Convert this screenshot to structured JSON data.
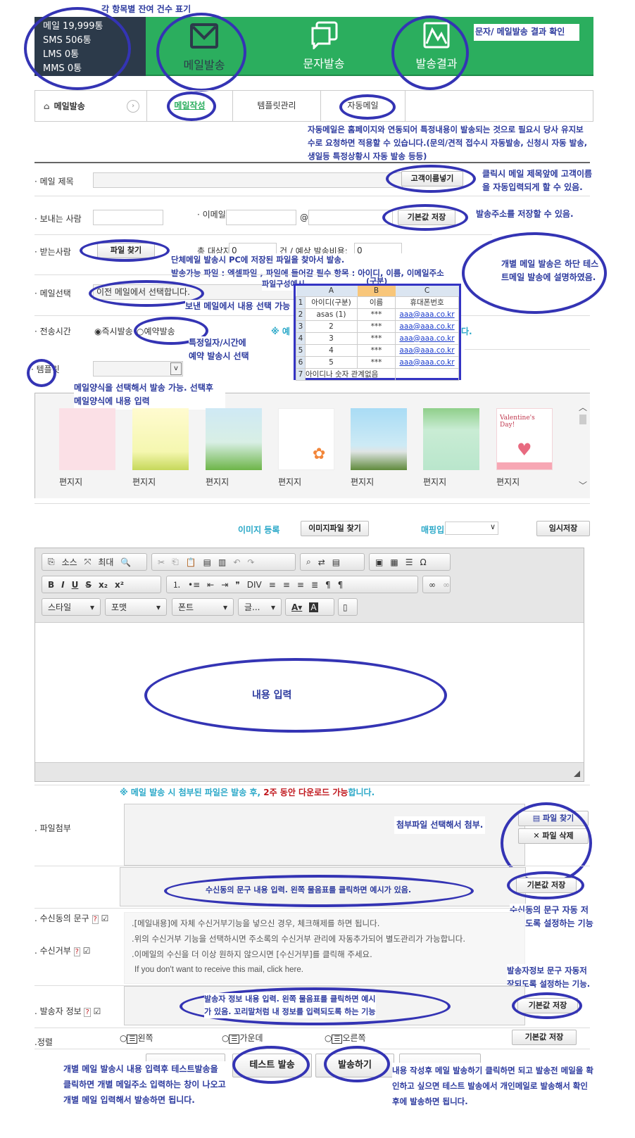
{
  "header": {
    "balances": [
      "메일 19,999통",
      "SMS 506통",
      "LMS 0통",
      "MMS 0통"
    ],
    "nav": [
      {
        "label": "메일발송",
        "icon": "envelope-icon"
      },
      {
        "label": "문자발송",
        "icon": "chat-bubbles-icon"
      },
      {
        "label": "발송결과",
        "icon": "mountain-chart-icon"
      }
    ],
    "colors": {
      "green": "#2bae5e",
      "dark": "#2c3a4a",
      "annotation": "#2c3a9e",
      "ellipse": "#3434b4"
    }
  },
  "subnav": {
    "home": "메일발송",
    "tabs": [
      "메일작성",
      "템플릿관리",
      "자동메일"
    ],
    "active": 0
  },
  "form": {
    "subject_label": "· 메일 제목",
    "customer_name_btn": "고객이름넣기",
    "sender_label": "· 보내는 사람",
    "email_label": "· 이메일",
    "at": "@",
    "save_default_btn": "기본값 저장",
    "recipient_label": "· 받는사람",
    "file_find_btn": "파일 찾기",
    "total_label": "총 대상자:",
    "total_value": "0",
    "cost_label": "건 / 예상 발송비용:",
    "cost_value": "0",
    "mail_select_label": "· 메일선택",
    "mail_select_value": "이전 메일에서 선택합니다.",
    "send_time_label": "· 전송시간",
    "radio_now": "즉시발송",
    "radio_reserve": "예약발송",
    "send_time_note_start": "※ 예",
    "send_time_note_end": "다.",
    "template_label": "· 템플릿"
  },
  "excel": {
    "caption": "파일구성예시",
    "sub": "(구분)",
    "cols": [
      "A",
      "B",
      "C"
    ],
    "rows": [
      [
        "1",
        "아이디(구분)",
        "이름",
        "휴대폰번호"
      ],
      [
        "2",
        "asas (1)",
        "***",
        "aaa@aaa.co.kr"
      ],
      [
        "3",
        "2",
        "***",
        "aaa@aaa.co.kr"
      ],
      [
        "4",
        "3",
        "***",
        "aaa@aaa.co.kr"
      ],
      [
        "5",
        "4",
        "***",
        "aaa@aaa.co.kr"
      ],
      [
        "6",
        "5",
        "***",
        "aaa@aaa.co.kr"
      ],
      [
        "7",
        "아이디나 숫자 관계없음",
        "",
        ""
      ]
    ]
  },
  "templates": [
    "편지지",
    "편지지",
    "편지지",
    "편지지",
    "편지지",
    "편지지",
    "편지지"
  ],
  "valentine": "Valentine's Day!",
  "image_bar": {
    "image_label": "이미지 등록",
    "image_btn": "이미지파일 찾기",
    "mapping_label": "매핑입력",
    "temp_save": "임시저장"
  },
  "editor": {
    "row1": [
      "소스",
      "최대"
    ],
    "dropdowns": [
      "스타일",
      "포맷",
      "폰트",
      "글..."
    ],
    "content": "내용 입력"
  },
  "attach": {
    "note_a": "※ 메일 발송 시 첨부된 파일은 발송 후, ",
    "note_b": "2주 동안 다운로드 가능",
    "note_c": "합니다.",
    "label": ". 파일첨부",
    "find": "파일 찾기",
    "delete": "파일 삭제"
  },
  "consent": {
    "label": ". 수신동의 문구",
    "save": "기본값 저장"
  },
  "reject": {
    "label": ". 수신거부",
    "lines": [
      "[메일내용]에 자체 수신거부기능을 넣으신 경우, 체크해제를 하면 됩니다.",
      "위의 수신거부 기능을 선택하시면 주소록의 수신거부 관리에 자동추가되어 별도관리가 가능합니다.",
      "이메일의 수신을 더 이상 원하지 않으시면 [수신거부]를 클릭해 주세요."
    ],
    "english": "If you don't want to receive this mail, click here."
  },
  "sender_info": {
    "label": ". 발송자 정보",
    "save": "기본값 저장"
  },
  "align": {
    "label": ".정렬",
    "options": [
      "왼쪽",
      "가운데",
      "오른쪽"
    ],
    "save": "기본값 저장"
  },
  "actions": {
    "test": "테스트 발송",
    "send": "발송하기"
  },
  "annotations": {
    "balances": "각 항목별 잔여 건수 표기",
    "result": "문자/ 메일발송 결과 확인",
    "auto_mail": [
      "자동메일은 홈페이지와 연동되어 특정내용이 발송되는 것으로 필요시 당사 유지보",
      "수로 요청하면 적용할 수 있습니다.(문의/견적 접수시 자동발송, 신청시 자동 발송,",
      "생일등 특정상황시 자동 발송 등등)"
    ],
    "customer_name": [
      "클릭시 메일 제목앞에 고객이름",
      "을 자동입력되게 할 수 있음."
    ],
    "save_address": "발송주소를 저장할 수 있음.",
    "bulk": [
      "단체메일 발송시 PC에 저장된 파일을 찾아서 발송.",
      "발송가능 파일 : 엑셀파일 , 파일에 들어갈 필수 항목 : 아이디, 이름, 이메일주소"
    ],
    "individual": [
      "개별 메일 발송은 하단 테스",
      "트메일 발송에 설명하였음."
    ],
    "prev_mail": "보낸 메일에서 내용 선택 가능",
    "reserve": [
      "특정일자/시간에",
      "예약 발송시 선택"
    ],
    "template": [
      "메일양식을 선택해서 발송 가능. 선택후",
      "메일양식에 내용 입력"
    ],
    "attach": "첨부파일 선택해서 첨부.",
    "consent_content": "수신동의 문구 내용 입력. 왼쪽 물음표를 클릭하면 예시가 있음.",
    "consent_save": [
      "수신동의 문구 자동 저",
      "장되도록 설정하는 기능"
    ],
    "sender_save": [
      "발송자정보 문구 자동저",
      "장되도록 설정하는 기능."
    ],
    "sender_content": [
      "발송자 정보 내용 입력. 왼쪽 물음표를 클릭하면 예시",
      "가 있음. 꼬리말처럼 내 정보를 입력되도록 하는 기능"
    ],
    "test": [
      "개별 메일 발송시 내용 입력후 테스트발송을",
      "클릭하면 개별 메일주소 입력하는 창이 나오고",
      "개별 메일 입력해서 발송하면 됩니다."
    ],
    "send": [
      "내용 작성후 메일 발송하기 클릭하면 되고 발송전 메일을 확",
      "인하고 싶으면 테스트 발송에서 개인메일로 발송해서 확인",
      "후에 발송하면 됩니다."
    ]
  }
}
